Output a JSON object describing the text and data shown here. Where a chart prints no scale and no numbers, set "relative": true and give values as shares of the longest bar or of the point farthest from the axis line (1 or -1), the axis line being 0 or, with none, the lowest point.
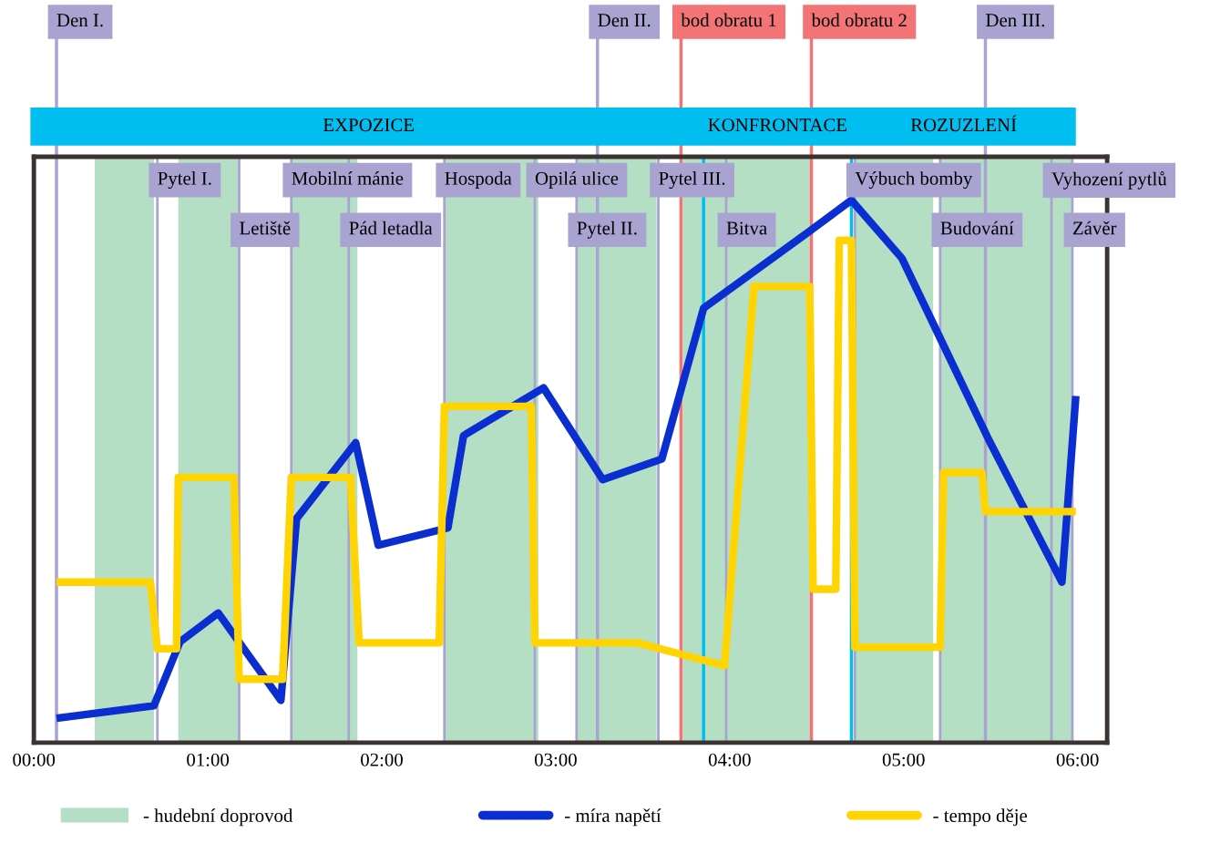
{
  "chart_data": {
    "type": "line",
    "relative": true,
    "xlim": [
      0,
      6.17
    ],
    "xticks": [
      {
        "value": 0,
        "label": "00:00"
      },
      {
        "value": 1,
        "label": "01:00"
      },
      {
        "value": 2,
        "label": "02:00"
      },
      {
        "value": 3,
        "label": "03:00"
      },
      {
        "value": 4,
        "label": "04:00"
      },
      {
        "value": 5,
        "label": "05:00"
      },
      {
        "value": 6,
        "label": "06:00"
      }
    ],
    "grid": false,
    "legend": "bottom",
    "marker": "none",
    "line_style": "solid",
    "series": [
      {
        "name": "- míra napětí",
        "color": "#0a2ecf",
        "x": [
          0.13,
          0.69,
          0.84,
          1.06,
          1.42,
          1.51,
          1.85,
          1.98,
          2.38,
          2.47,
          2.93,
          3.27,
          3.61,
          3.85,
          4.46,
          4.7,
          4.99,
          5.49,
          5.91,
          5.99
        ],
        "values": [
          0.045,
          0.068,
          0.186,
          0.239,
          0.078,
          0.413,
          0.553,
          0.364,
          0.396,
          0.566,
          0.654,
          0.485,
          0.523,
          0.801,
          0.943,
          1.0,
          0.893,
          0.558,
          0.296,
          0.639
        ]
      },
      {
        "name": "- tempo děje",
        "color": "#ffd400",
        "x": [
          0.13,
          0.67,
          0.71,
          0.82,
          0.83,
          1.15,
          1.18,
          1.43,
          1.48,
          1.82,
          1.87,
          2.33,
          2.36,
          2.86,
          2.88,
          3.47,
          3.97,
          4.14,
          4.46,
          4.48,
          4.61,
          4.63,
          4.7,
          4.72,
          5.21,
          5.23,
          5.45,
          5.47,
          5.99
        ],
        "values": [
          0.296,
          0.296,
          0.173,
          0.173,
          0.489,
          0.489,
          0.117,
          0.117,
          0.489,
          0.489,
          0.184,
          0.184,
          0.62,
          0.62,
          0.184,
          0.184,
          0.142,
          0.841,
          0.841,
          0.283,
          0.283,
          0.926,
          0.926,
          0.176,
          0.176,
          0.498,
          0.498,
          0.426,
          0.426
        ]
      }
    ],
    "bands": [
      {
        "axis": "x",
        "from": 0.35,
        "to": 0.69,
        "label": "- hudební doprovod",
        "color": "#b5dfc5"
      },
      {
        "axis": "x",
        "from": 0.83,
        "to": 1.18,
        "color": "#b5dfc5"
      },
      {
        "axis": "x",
        "from": 1.48,
        "to": 1.86,
        "color": "#b5dfc5"
      },
      {
        "axis": "x",
        "from": 2.36,
        "to": 2.9,
        "color": "#b5dfc5"
      },
      {
        "axis": "x",
        "from": 3.12,
        "to": 3.58,
        "color": "#b5dfc5"
      },
      {
        "axis": "x",
        "from": 3.73,
        "to": 4.47,
        "color": "#b5dfc5"
      },
      {
        "axis": "x",
        "from": 4.72,
        "to": 5.17,
        "color": "#b5dfc5"
      },
      {
        "axis": "x",
        "from": 5.21,
        "to": 5.97,
        "color": "#b5dfc5"
      }
    ],
    "annotations": [
      "EXPOZICE",
      "KONFRONTACE",
      "ROZUZLENÍ"
    ],
    "ref_lines": [
      {
        "axis": "x",
        "value": 0.13,
        "label": "Den I.",
        "color": "#a9a3d2"
      },
      {
        "axis": "x",
        "value": 3.24,
        "label": "Den II.",
        "color": "#a9a3d2"
      },
      {
        "axis": "x",
        "value": 5.47,
        "label": "Den III.",
        "color": "#a9a3d2"
      },
      {
        "axis": "x",
        "value": 3.72,
        "label": "bod obratu 1",
        "color": "#f27474"
      },
      {
        "axis": "x",
        "value": 4.47,
        "label": "bod obratu 2",
        "color": "#f27474"
      },
      {
        "axis": "x",
        "value": 3.85,
        "color": "#00bff0"
      },
      {
        "axis": "x",
        "value": 4.7,
        "color": "#00bff0"
      },
      {
        "axis": "x",
        "value": 0.71,
        "label": "Pytel I.",
        "color": "#a9a3d2"
      },
      {
        "axis": "x",
        "value": 1.18,
        "label": "Letiště",
        "color": "#a9a3d2"
      },
      {
        "axis": "x",
        "value": 1.48,
        "label": "Mobilní mánie",
        "color": "#a9a3d2"
      },
      {
        "axis": "x",
        "value": 1.81,
        "label": "Pád letadla",
        "color": "#a9a3d2"
      },
      {
        "axis": "x",
        "value": 2.36,
        "label": "Hospoda",
        "color": "#a9a3d2"
      },
      {
        "axis": "x",
        "value": 2.88,
        "label": "Opilá ulice",
        "color": "#a9a3d2"
      },
      {
        "axis": "x",
        "value": 3.12,
        "label": "Pytel II.",
        "color": "#a9a3d2"
      },
      {
        "axis": "x",
        "value": 3.59,
        "label": "Pytel III.",
        "color": "#a9a3d2"
      },
      {
        "axis": "x",
        "value": 3.98,
        "label": "Bitva",
        "color": "#a9a3d2"
      },
      {
        "axis": "x",
        "value": 4.72,
        "label": "Výbuch bomby",
        "color": "#a9a3d2"
      },
      {
        "axis": "x",
        "value": 5.21,
        "label": "Budování",
        "color": "#a9a3d2"
      },
      {
        "axis": "x",
        "value": 5.85,
        "label": "Vyhození pytlů",
        "color": "#a9a3d2"
      },
      {
        "axis": "x",
        "value": 5.97,
        "label": "Závěr",
        "color": "#a9a3d2"
      }
    ]
  }
}
